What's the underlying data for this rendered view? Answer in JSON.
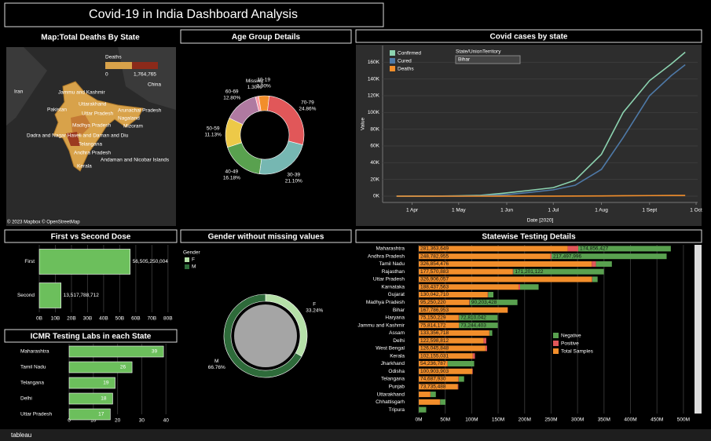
{
  "title": "Covid-19 in India Dashboard Analysis",
  "map": {
    "title": "Map:Total Deaths By State",
    "legend_title": "Deaths",
    "legend_min": "0",
    "legend_max": "1,764,765",
    "credit": "© 2023 Mapbox © OpenStreetMap",
    "labels": [
      "Iran",
      "Pakistan",
      "China",
      "Jammu and Kashmir",
      "Uttarakhand",
      "Uttar Pradesh",
      "Arunachal Pradesh",
      "Nagaland",
      "Mizoram",
      "Madhya Pradesh",
      "Dadra and Nagar Haveli and Daman and Diu",
      "Telangana",
      "Andhra Pradesh",
      "Kerala",
      "Andaman and Nicobar Islands"
    ]
  },
  "footer": "tableau",
  "chart_data": [
    {
      "type": "donut",
      "title": "Age Group Details",
      "categories": [
        "Missing",
        "10-19",
        "70-79",
        "30-39",
        "40-49",
        "50-59",
        "60-69"
      ],
      "values": [
        1.3,
        3.9,
        24.86,
        21.1,
        16.18,
        11.13,
        12.8
      ],
      "value_labels": [
        "1.30%",
        "3.90%",
        "24.86%",
        "21.10%",
        "16.18%",
        "11.13%",
        "12.80%"
      ],
      "colors": [
        "#ff9da7",
        "#f28e2b",
        "#e15759",
        "#76b7b2",
        "#59a14f",
        "#edc948",
        "#b07aa1"
      ]
    },
    {
      "type": "line",
      "title": "Covid cases by state",
      "x_label": "Date [2020]",
      "y_label": "Value",
      "filter_label": "State/UnionTerritory",
      "filter_value": "Bihar",
      "x": [
        "2020-03-22",
        "2020-04-01",
        "2020-04-15",
        "2020-05-01",
        "2020-05-15",
        "2020-06-01",
        "2020-06-15",
        "2020-07-01",
        "2020-07-15",
        "2020-08-01",
        "2020-08-15",
        "2020-09-01",
        "2020-09-15",
        "2020-09-24"
      ],
      "series": [
        {
          "name": "Confirmed",
          "color": "#8cd3b0",
          "values": [
            0,
            40,
            60,
            470,
            1000,
            3900,
            6800,
            10200,
            19000,
            50000,
            100000,
            138000,
            158000,
            172000
          ]
        },
        {
          "name": "Cured",
          "color": "#4e79a7",
          "values": [
            0,
            0,
            20,
            100,
            400,
            1800,
            4400,
            7600,
            13000,
            32000,
            70000,
            120000,
            144000,
            157000
          ]
        },
        {
          "name": "Deaths",
          "color": "#f28e2b",
          "values": [
            0,
            1,
            1,
            2,
            6,
            21,
            39,
            70,
            150,
            300,
            500,
            700,
            850,
            900
          ]
        }
      ],
      "xlim": [
        "2020-03-13",
        "2020-10-02"
      ],
      "xticks": [
        {
          "value": "2020-04-01",
          "label": "1 Apr"
        },
        {
          "value": "2020-05-01",
          "label": "1 May"
        },
        {
          "value": "2020-06-01",
          "label": "1 Jun"
        },
        {
          "value": "2020-07-01",
          "label": "1 Jul"
        },
        {
          "value": "2020-08-01",
          "label": "1 Aug"
        },
        {
          "value": "2020-09-01",
          "label": "1 Sept"
        },
        {
          "value": "2020-10-01",
          "label": "1 Oct"
        }
      ],
      "ylim": [
        -7500,
        180000
      ],
      "yticks": [
        {
          "value": 0,
          "label": "0K"
        },
        {
          "value": 20000,
          "label": "20K"
        },
        {
          "value": 40000,
          "label": "40K"
        },
        {
          "value": 60000,
          "label": "60K"
        },
        {
          "value": 80000,
          "label": "80K"
        },
        {
          "value": 100000,
          "label": "100K"
        },
        {
          "value": 120000,
          "label": "120K"
        },
        {
          "value": 140000,
          "label": "140K"
        },
        {
          "value": 160000,
          "label": "160K"
        }
      ],
      "grid": true
    },
    {
      "type": "bar",
      "orientation": "horizontal",
      "title": "First vs Second Dose",
      "categories": [
        "First",
        "Second"
      ],
      "values": [
        56505250004,
        13517788712
      ],
      "value_labels": [
        "56,505,250,004",
        "13,517,788,712"
      ],
      "color": "#6cbf5c",
      "xlim": [
        0,
        84000000000
      ],
      "xticks": [
        {
          "value": 0,
          "label": "0B"
        },
        {
          "value": 10000000000,
          "label": "10B"
        },
        {
          "value": 20000000000,
          "label": "20B"
        },
        {
          "value": 30000000000,
          "label": "30B"
        },
        {
          "value": 40000000000,
          "label": "40B"
        },
        {
          "value": 50000000000,
          "label": "50B"
        },
        {
          "value": 60000000000,
          "label": "60B"
        },
        {
          "value": 70000000000,
          "label": "70B"
        },
        {
          "value": 80000000000,
          "label": "80B"
        }
      ]
    },
    {
      "type": "bar",
      "orientation": "horizontal",
      "title": "ICMR Testing Labs in each State",
      "categories": [
        "Maharashtra",
        "Tamil Nadu",
        "Telangana",
        "Delhi",
        "Uttar Pradesh"
      ],
      "values": [
        39,
        26,
        19,
        18,
        17
      ],
      "color": "#6cbf5c",
      "xlim": [
        0,
        43.5
      ],
      "xticks": [
        0,
        10,
        20,
        30,
        40
      ]
    },
    {
      "type": "donut",
      "title": "Gender without missing values",
      "legend_title": "Gender",
      "categories": [
        "F",
        "M"
      ],
      "values": [
        33.24,
        66.76
      ],
      "value_labels": [
        "33.24%",
        "66.76%"
      ],
      "colors": [
        "#b5e0a8",
        "#2e6b3a"
      ]
    },
    {
      "type": "bar",
      "orientation": "horizontal",
      "stacked": true,
      "title": "Statewise Testing Details",
      "categories": [
        "Maharashtra",
        "Andhra Pradesh",
        "Tamil Nadu",
        "Rajasthan",
        "Uttar Pradesh",
        "Karnataka",
        "Gujarat",
        "Madhya Pradesh",
        "Bihar",
        "Haryana",
        "Jammu and Kashmir",
        "Assam",
        "Delhi",
        "West Bengal",
        "Kerala",
        "Jharkhand",
        "Odisha",
        "Telangana",
        "Punjab",
        "Uttarakhand",
        "Chhattisgarh",
        "Tripura"
      ],
      "series": [
        {
          "name": "Negative",
          "color": "#59a14f",
          "values": [
            174856427,
            217497996,
            30000000,
            171201122,
            10000000,
            35000000,
            10000000,
            90203428,
            0,
            72810042,
            73244403,
            5000000,
            0,
            0,
            0,
            50000000,
            0,
            10000000,
            0,
            10000000,
            10000000,
            14000000
          ],
          "value_labels": [
            "174,856,427",
            "217,497,996",
            null,
            "171,201,122",
            null,
            null,
            null,
            "90,203,428",
            null,
            "72,810,042",
            "73,244,403",
            null,
            null,
            null,
            null,
            null,
            null,
            null,
            null,
            null,
            null,
            null
          ]
        },
        {
          "name": "Positive",
          "color": "#e15759",
          "values": [
            20000000,
            2000000,
            8000000,
            1000000,
            1000000,
            3000000,
            1000000,
            1000000,
            500000,
            1000000,
            300000,
            500000,
            5000000,
            3000000,
            4000000,
            500000,
            1000000,
            1000000,
            1000000,
            300000,
            500000,
            100000
          ]
        },
        {
          "name": "Total Samples",
          "color": "#f28e2b",
          "values": [
            281363649,
            248782955,
            326854476,
            177570883,
            326906057,
            188437563,
            130042710,
            95250220,
            167786953,
            75150229,
            75814172,
            133356718,
            122598812,
            126045848,
            102155031,
            54236787,
            100903903,
            74687930,
            73735488,
            22000000,
            40000000,
            0
          ],
          "value_labels": [
            "281,363,649",
            "248,782,955",
            "326,854,476",
            "177,570,883",
            "326,906,057",
            "188,437,563",
            "130,042,710",
            "95,250,220",
            "167,786,953",
            "75,150,229",
            "75,814,172",
            "133,356,718",
            "122,598,812",
            "126,045,848",
            "102,155,031",
            "54,236,787",
            "100,903,903",
            "74,687,930",
            "73,735,488",
            null,
            null,
            null
          ]
        }
      ],
      "xlim": [
        0,
        515000000
      ],
      "xticks": [
        {
          "value": 0,
          "label": "0M"
        },
        {
          "value": 50000000,
          "label": "50M"
        },
        {
          "value": 100000000,
          "label": "100M"
        },
        {
          "value": 150000000,
          "label": "150M"
        },
        {
          "value": 200000000,
          "label": "200M"
        },
        {
          "value": 250000000,
          "label": "250M"
        },
        {
          "value": 300000000,
          "label": "300M"
        },
        {
          "value": 350000000,
          "label": "350M"
        },
        {
          "value": 400000000,
          "label": "400M"
        },
        {
          "value": 450000000,
          "label": "450M"
        },
        {
          "value": 500000000,
          "label": "500M"
        }
      ]
    }
  ]
}
